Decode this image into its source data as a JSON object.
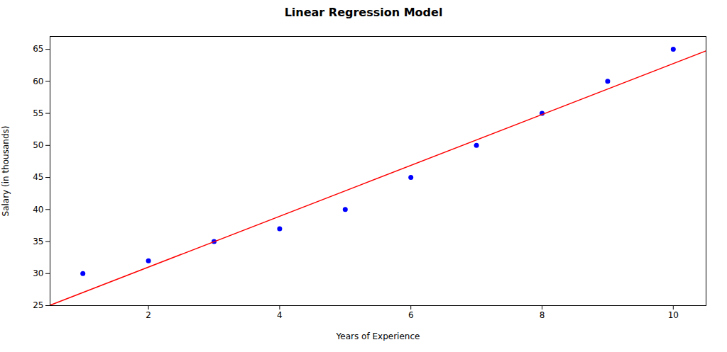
{
  "chart_data": {
    "type": "scatter",
    "title": "Linear Regression Model",
    "xlabel": "Years of Experience",
    "ylabel": "Salary (in thousands)",
    "series": [
      {
        "type": "scatter",
        "color": "blue",
        "marker": "circle",
        "x": [
          1,
          2,
          3,
          4,
          5,
          6,
          7,
          8,
          9,
          10
        ],
        "values": [
          30,
          32,
          35,
          37,
          40,
          45,
          50,
          55,
          60,
          65
        ]
      },
      {
        "type": "line",
        "color": "red",
        "line_style": "solid",
        "x": [
          0.5,
          10.5
        ],
        "values": [
          25.0515,
          64.7485
        ]
      }
    ],
    "xlim": [
      0.5,
      10.5
    ],
    "ylim": [
      25,
      67
    ],
    "xticks": [
      2,
      4,
      6,
      8,
      10
    ],
    "yticks": [
      25,
      30,
      35,
      40,
      45,
      50,
      55,
      60,
      65
    ],
    "grid": false
  }
}
